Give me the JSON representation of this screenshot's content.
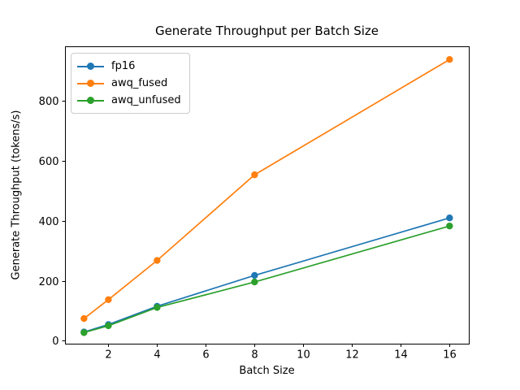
{
  "figure": {
    "background": "#ffffff",
    "text_color": "#000000",
    "spine_color": "#000000"
  },
  "chart_data": {
    "type": "line",
    "title": "Generate Throughput per Batch Size",
    "xlabel": "Batch Size",
    "ylabel": "Generate Throughput (tokens/s)",
    "x": [
      1,
      2,
      4,
      8,
      16
    ],
    "series": [
      {
        "name": "fp16",
        "color": "#1f77b4",
        "values": [
          29,
          54,
          115,
          218,
          410
        ]
      },
      {
        "name": "awq_fused",
        "color": "#ff7f0e",
        "values": [
          74,
          137,
          268,
          554,
          939
        ]
      },
      {
        "name": "awq_unfused",
        "color": "#2ca02c",
        "values": [
          27,
          50,
          111,
          196,
          383
        ]
      }
    ],
    "marker": "o",
    "grid": false,
    "legend_position": "upper left",
    "xticks": [
      2,
      4,
      6,
      8,
      10,
      12,
      14,
      16
    ],
    "yticks": [
      0,
      200,
      400,
      600,
      800
    ],
    "xlim": [
      0.22,
      16.79
    ],
    "ylim": [
      -10,
      983
    ]
  }
}
